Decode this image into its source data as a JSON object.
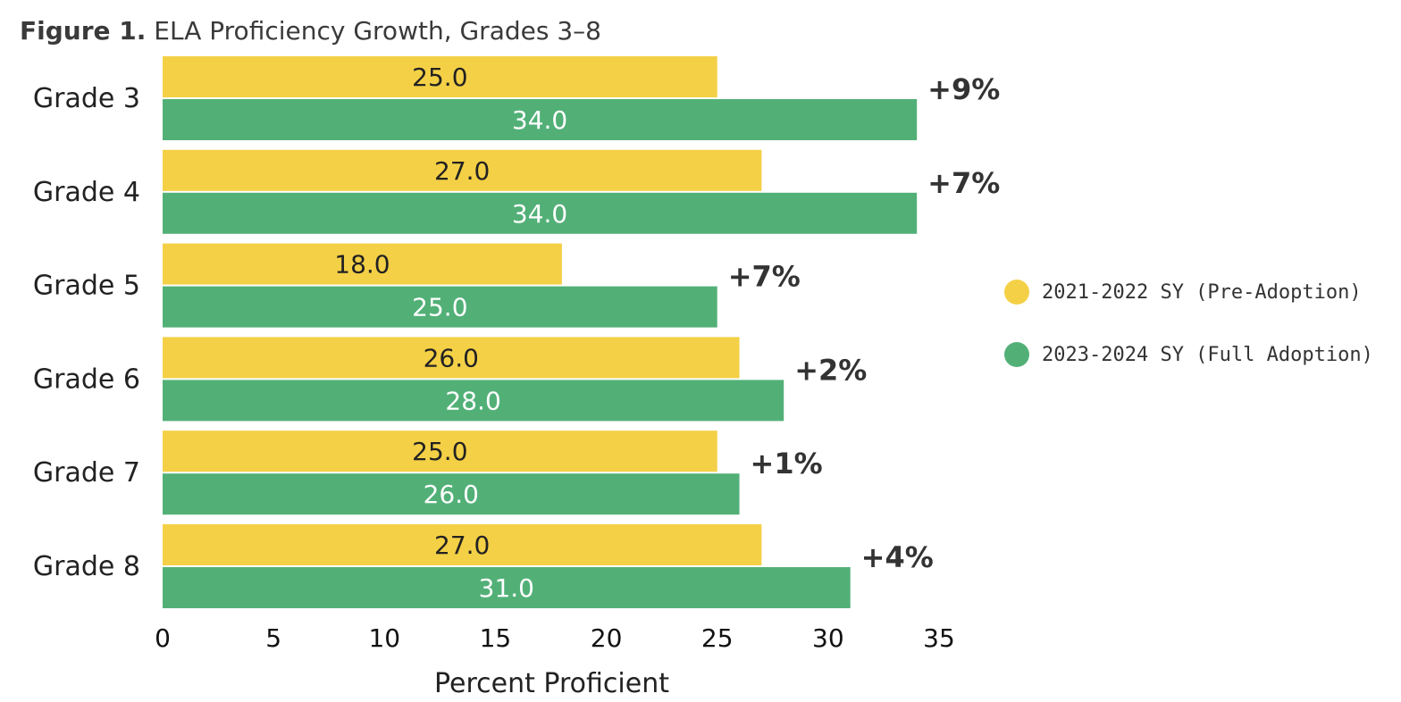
{
  "title": {
    "prefix": "Figure 1.",
    "text": "ELA Proficiency Growth, Grades 3–8"
  },
  "colors": {
    "pre": "#f4d046",
    "full": "#52b077",
    "text_dark": "#222222",
    "text_light": "#ffffff",
    "change": "#333333"
  },
  "chart_data": {
    "type": "bar",
    "orientation": "horizontal",
    "categories": [
      "Grade 3",
      "Grade 4",
      "Grade 5",
      "Grade 6",
      "Grade 7",
      "Grade 8"
    ],
    "series": [
      {
        "name": "2021-2022 SY (Pre-Adoption)",
        "values": [
          25.0,
          27.0,
          18.0,
          26.0,
          25.0,
          27.0
        ]
      },
      {
        "name": "2023-2024 SY (Full Adoption)",
        "values": [
          34.0,
          34.0,
          25.0,
          28.0,
          26.0,
          31.0
        ]
      }
    ],
    "value_labels": [
      [
        "25.0",
        "27.0",
        "18.0",
        "26.0",
        "25.0",
        "27.0"
      ],
      [
        "34.0",
        "34.0",
        "25.0",
        "28.0",
        "26.0",
        "31.0"
      ]
    ],
    "change_labels": [
      "+9%",
      "+7%",
      "+7%",
      "+2%",
      "+1%",
      "+4%"
    ],
    "xlabel": "Percent Proficient",
    "ylabel": "",
    "xlim": [
      0,
      35
    ],
    "xticks": [
      "0",
      "5",
      "10",
      "15",
      "20",
      "25",
      "30",
      "35"
    ],
    "legend_position": "right"
  }
}
